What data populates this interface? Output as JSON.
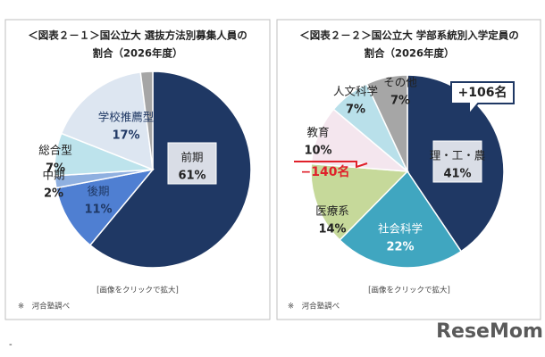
{
  "chart_data": [
    {
      "type": "pie",
      "title": "＜図表２－１＞国公立大 選抜方法別募集人員の",
      "subtitle": "割合（2026年度）",
      "categories": [
        "前期",
        "後期",
        "中期",
        "総合型",
        "学校推薦型",
        null
      ],
      "values": [
        61,
        11,
        2,
        7,
        17,
        2
      ],
      "value_labels": [
        "61%",
        "11%",
        "2%",
        "7%",
        "17%",
        null
      ],
      "colors": [
        "#1f3864",
        "#4f7fd2",
        "#8fb0e0",
        "#bde3ec",
        "#dde6f1",
        "#a6a6a6"
      ],
      "note": "[画像をクリックで拡大]",
      "source": "※　河合塾調べ"
    },
    {
      "type": "pie",
      "title": "＜図表２－２＞国公立大 学部系統別入学定員の",
      "subtitle": "割合（2026年度）",
      "categories": [
        "理・工・農",
        "社会科学",
        "医療系",
        "教育",
        "人文科学",
        "その他"
      ],
      "values": [
        41,
        22,
        14,
        10,
        7,
        7
      ],
      "value_labels": [
        "41%",
        "22%",
        "14%",
        "10%",
        "7%",
        "7%"
      ],
      "colors": [
        "#1f3864",
        "#40a6c0",
        "#c6d99a",
        "#f4e6ee",
        "#b9e0ea",
        "#a6a6a6"
      ],
      "annotations": [
        "+106名",
        "−140名"
      ],
      "note": "[画像をクリックで拡大]",
      "source": "※　河合塾調べ"
    }
  ],
  "logo": "ReseMom"
}
